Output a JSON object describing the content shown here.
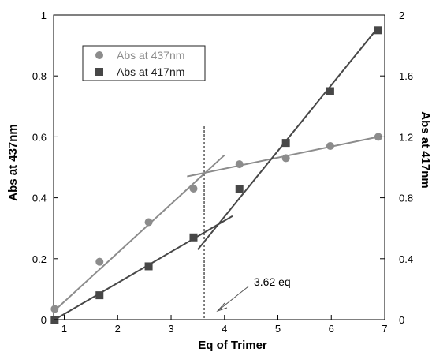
{
  "chart_data": {
    "type": "scatter",
    "title": "",
    "xlabel": "Eq of Trimer",
    "ylabel_left": "Abs at 437nm",
    "ylabel_right": "Abs at 417nm",
    "xlim": [
      0.8,
      7.0
    ],
    "ylim_left": [
      0,
      1
    ],
    "ylim_right": [
      0,
      2
    ],
    "x_ticks": [
      1,
      2,
      3,
      4,
      5,
      6,
      7
    ],
    "y_left_ticks": [
      0,
      0.2,
      0.4,
      0.6,
      0.8,
      1
    ],
    "y_right_ticks": [
      0,
      0.4,
      0.8,
      1.2,
      1.6,
      2
    ],
    "grid": false,
    "legend_position": "top-left",
    "series": [
      {
        "name": "Abs at 437nm",
        "axis": "left",
        "marker": "circle",
        "color": "#8c8c8c",
        "x": [
          0.82,
          1.66,
          2.58,
          3.42,
          4.28,
          5.15,
          5.98,
          6.88
        ],
        "y": [
          0.035,
          0.19,
          0.32,
          0.43,
          0.51,
          0.53,
          0.57,
          0.6
        ]
      },
      {
        "name": "Abs at 417nm",
        "axis": "right",
        "marker": "square",
        "color": "#474747",
        "x": [
          0.82,
          1.66,
          2.58,
          3.42,
          4.28,
          5.15,
          5.98,
          6.88
        ],
        "y": [
          0.0,
          0.16,
          0.35,
          0.54,
          0.86,
          1.16,
          1.5,
          1.9
        ]
      }
    ],
    "fit_lines": [
      {
        "series": "Abs at 437nm",
        "axis": "left",
        "color": "#8c8c8c",
        "from": [
          0.82,
          0.03
        ],
        "to": [
          4.0,
          0.54
        ]
      },
      {
        "series": "Abs at 437nm",
        "axis": "left",
        "color": "#8c8c8c",
        "from": [
          3.3,
          0.47
        ],
        "to": [
          6.88,
          0.6
        ]
      },
      {
        "series": "Abs at 417nm",
        "axis": "right",
        "color": "#474747",
        "from": [
          0.82,
          0.0
        ],
        "to": [
          4.15,
          0.68
        ]
      },
      {
        "series": "Abs at 417nm",
        "axis": "right",
        "color": "#474747",
        "from": [
          3.5,
          0.46
        ],
        "to": [
          6.88,
          1.92
        ]
      }
    ],
    "vertical_marker_x": 3.62,
    "annotation": {
      "text": "3.62 eq"
    }
  }
}
